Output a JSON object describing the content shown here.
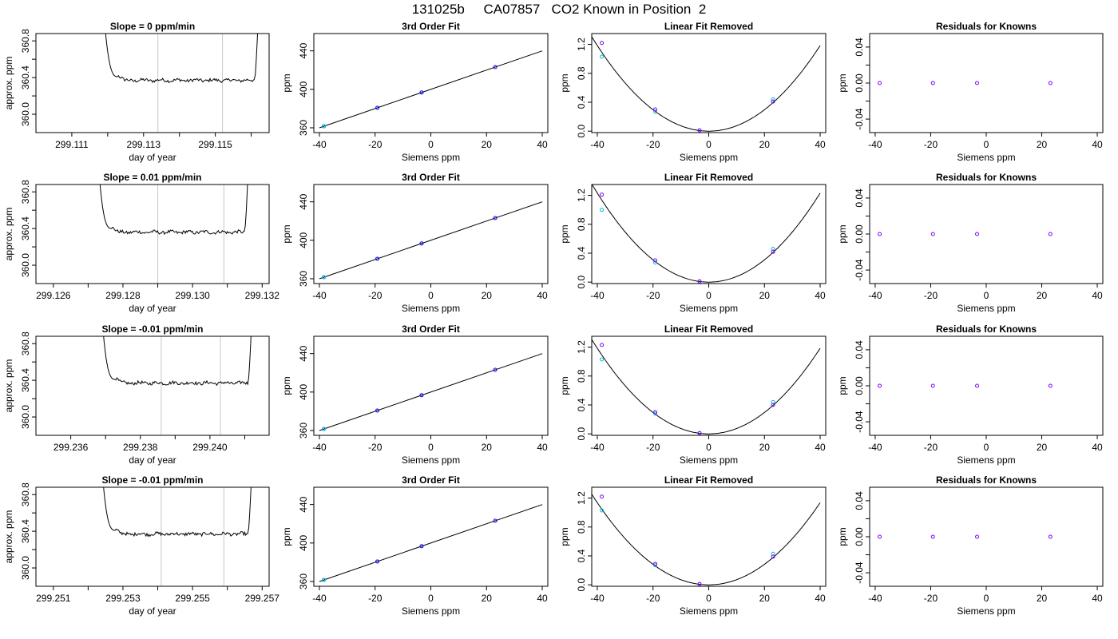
{
  "main_title": "131025b     CA07857   CO2 Known in Position  2",
  "chart_data": [
    {
      "type": "line",
      "row": 0,
      "panel": "trace",
      "title": "Slope =  0  ppm/min",
      "xlabel": "day of year",
      "ylabel": "approx. ppm",
      "xlim": [
        299.11,
        299.1165
      ],
      "ylim": [
        359.8,
        360.88
      ],
      "xticks": [
        299.111,
        299.112,
        299.113,
        299.114,
        299.115,
        299.116
      ],
      "xtick_labels": [
        "299.111",
        "",
        "299.113",
        "",
        "299.115",
        ""
      ],
      "yticks": [
        360.0,
        360.2,
        360.4,
        360.6,
        360.8
      ],
      "ytick_labels": [
        "360.0",
        "",
        "360.4",
        "",
        "360.8"
      ],
      "vlines": [
        299.1134,
        299.1152
      ],
      "trace": {
        "start": 299.1119,
        "end": 299.1162,
        "level": 360.37,
        "ends_high": true
      }
    },
    {
      "type": "line",
      "row": 0,
      "panel": "fit",
      "title": "3rd Order Fit",
      "xlabel": "Siemens ppm",
      "ylabel": "ppm",
      "xlim": [
        -42,
        42
      ],
      "ylim": [
        355,
        458
      ],
      "xticks": [
        -40,
        -20,
        0,
        20,
        40
      ],
      "yticks": [
        360,
        400,
        440
      ],
      "ytick_labels": [
        "360",
        "400",
        "440"
      ],
      "points": [
        {
          "x": -38.4,
          "y": 361.6
        },
        {
          "x": -19.2,
          "y": 380.8
        },
        {
          "x": -3.3,
          "y": 396.7
        },
        {
          "x": 23.1,
          "y": 423.1
        }
      ],
      "line": {
        "x0": -40,
        "x1": 40
      }
    },
    {
      "type": "line",
      "row": 0,
      "panel": "linear",
      "title": "Linear Fit Removed",
      "xlabel": "Siemens ppm",
      "ylabel": "ppm",
      "xlim": [
        -42,
        42
      ],
      "ylim": [
        -0.02,
        1.35
      ],
      "xticks": [
        -40,
        -20,
        0,
        20,
        40
      ],
      "yticks": [
        0.0,
        0.4,
        0.8,
        1.2
      ],
      "ytick_labels": [
        "0.0",
        "0.4",
        "0.8",
        "1.2"
      ],
      "curve_a": 0.00074,
      "x_end": 40,
      "y_end": 1.19,
      "points_purple": [
        {
          "x": -38.4,
          "y": 1.22
        },
        {
          "x": -19.2,
          "y": 0.3
        },
        {
          "x": -3.3,
          "y": 0.01
        },
        {
          "x": 23.1,
          "y": 0.41
        }
      ],
      "points_cyan": [
        {
          "x": -38.4,
          "y": 1.03
        },
        {
          "x": -19.2,
          "y": 0.27
        },
        {
          "x": -3.3,
          "y": 0.01
        },
        {
          "x": 23.1,
          "y": 0.44
        }
      ]
    },
    {
      "type": "scatter",
      "row": 0,
      "panel": "resid",
      "title": "Residuals for Knowns",
      "xlabel": "Siemens ppm",
      "ylabel": "ppm",
      "xlim": [
        -42,
        42
      ],
      "ylim": [
        -0.055,
        0.055
      ],
      "xticks": [
        -40,
        -20,
        0,
        20,
        40
      ],
      "yticks": [
        -0.04,
        -0.02,
        0.0,
        0.02,
        0.04
      ],
      "ytick_labels": [
        "-0.04",
        "",
        "0.00",
        "",
        "0.04"
      ],
      "points": [
        {
          "x": -38.4,
          "y": 0
        },
        {
          "x": -19.2,
          "y": 0
        },
        {
          "x": -3.3,
          "y": 0
        },
        {
          "x": 23.1,
          "y": 0
        }
      ]
    },
    {
      "type": "line",
      "row": 1,
      "panel": "trace",
      "title": "Slope =  0.01  ppm/min",
      "xlabel": "day of year",
      "ylabel": "approx. ppm",
      "xlim": [
        299.1255,
        299.1322
      ],
      "ylim": [
        359.8,
        360.88
      ],
      "xticks": [
        299.126,
        299.127,
        299.128,
        299.129,
        299.13,
        299.131,
        299.132
      ],
      "xtick_labels": [
        "299.126",
        "",
        "299.128",
        "",
        "299.130",
        "",
        "299.132"
      ],
      "yticks": [
        360.0,
        360.2,
        360.4,
        360.6,
        360.8
      ],
      "ytick_labels": [
        "360.0",
        "",
        "360.4",
        "",
        "360.8"
      ],
      "vlines": [
        299.129,
        299.1309
      ],
      "trace": {
        "start": 299.1273,
        "end": 299.1316,
        "level": 360.36,
        "ends_high": true
      }
    },
    {
      "type": "line",
      "row": 1,
      "panel": "fit",
      "title": "3rd Order Fit",
      "xlabel": "Siemens ppm",
      "ylabel": "ppm",
      "xlim": [
        -42,
        42
      ],
      "ylim": [
        355,
        458
      ],
      "xticks": [
        -40,
        -20,
        0,
        20,
        40
      ],
      "yticks": [
        360,
        400,
        440
      ],
      "ytick_labels": [
        "360",
        "400",
        "440"
      ],
      "points": [
        {
          "x": -38.4,
          "y": 361.6
        },
        {
          "x": -19.2,
          "y": 380.8
        },
        {
          "x": -3.3,
          "y": 396.7
        },
        {
          "x": 23.1,
          "y": 423.1
        }
      ],
      "line": {
        "x0": -40,
        "x1": 40
      }
    },
    {
      "type": "line",
      "row": 1,
      "panel": "linear",
      "title": "Linear Fit Removed",
      "xlabel": "Siemens ppm",
      "ylabel": "ppm",
      "xlim": [
        -42,
        42
      ],
      "ylim": [
        -0.02,
        1.35
      ],
      "xticks": [
        -40,
        -20,
        0,
        20,
        40
      ],
      "yticks": [
        0.0,
        0.4,
        0.8,
        1.2
      ],
      "ytick_labels": [
        "0.0",
        "0.4",
        "0.8",
        "1.2"
      ],
      "curve_a": 0.00077,
      "x_end": 40,
      "y_end": 1.25,
      "points_purple": [
        {
          "x": -38.4,
          "y": 1.21
        },
        {
          "x": -19.2,
          "y": 0.3
        },
        {
          "x": -3.3,
          "y": 0.01
        },
        {
          "x": 23.1,
          "y": 0.42
        }
      ],
      "points_cyan": [
        {
          "x": -38.4,
          "y": 1.0
        },
        {
          "x": -19.2,
          "y": 0.27
        },
        {
          "x": -3.3,
          "y": 0.01
        },
        {
          "x": 23.1,
          "y": 0.46
        }
      ]
    },
    {
      "type": "scatter",
      "row": 1,
      "panel": "resid",
      "title": "Residuals for Knowns",
      "xlabel": "Siemens ppm",
      "ylabel": "ppm",
      "xlim": [
        -42,
        42
      ],
      "ylim": [
        -0.055,
        0.055
      ],
      "xticks": [
        -40,
        -20,
        0,
        20,
        40
      ],
      "yticks": [
        -0.04,
        -0.02,
        0.0,
        0.02,
        0.04
      ],
      "ytick_labels": [
        "-0.04",
        "",
        "0.00",
        "",
        "0.04"
      ],
      "points": [
        {
          "x": -38.4,
          "y": 0
        },
        {
          "x": -19.2,
          "y": 0
        },
        {
          "x": -3.3,
          "y": 0
        },
        {
          "x": 23.1,
          "y": 0
        }
      ]
    },
    {
      "type": "line",
      "row": 2,
      "panel": "trace",
      "title": "Slope =  -0.01  ppm/min",
      "xlabel": "day of year",
      "ylabel": "approx. ppm",
      "xlim": [
        299.235,
        299.2417
      ],
      "ylim": [
        359.8,
        360.88
      ],
      "xticks": [
        299.236,
        299.237,
        299.238,
        299.239,
        299.24,
        299.241
      ],
      "xtick_labels": [
        "299.236",
        "",
        "299.238",
        "",
        "299.240",
        ""
      ],
      "yticks": [
        360.0,
        360.2,
        360.4,
        360.6,
        360.8
      ],
      "ytick_labels": [
        "360.0",
        "",
        "360.4",
        "",
        "360.8"
      ],
      "vlines": [
        299.2386,
        299.2403
      ],
      "trace": {
        "start": 299.2369,
        "end": 299.2412,
        "level": 360.37,
        "ends_high": true
      }
    },
    {
      "type": "line",
      "row": 2,
      "panel": "fit",
      "title": "3rd Order Fit",
      "xlabel": "Siemens ppm",
      "ylabel": "ppm",
      "xlim": [
        -42,
        42
      ],
      "ylim": [
        355,
        458
      ],
      "xticks": [
        -40,
        -20,
        0,
        20,
        40
      ],
      "yticks": [
        360,
        400,
        440
      ],
      "ytick_labels": [
        "360",
        "400",
        "440"
      ],
      "points": [
        {
          "x": -38.4,
          "y": 361.6
        },
        {
          "x": -19.2,
          "y": 380.8
        },
        {
          "x": -3.3,
          "y": 396.7
        },
        {
          "x": 23.1,
          "y": 423.1
        }
      ],
      "line": {
        "x0": -40,
        "x1": 40
      }
    },
    {
      "type": "line",
      "row": 2,
      "panel": "linear",
      "title": "Linear Fit Removed",
      "xlabel": "Siemens ppm",
      "ylabel": "ppm",
      "xlim": [
        -42,
        42
      ],
      "ylim": [
        -0.02,
        1.35
      ],
      "xticks": [
        -40,
        -20,
        0,
        20,
        40
      ],
      "yticks": [
        0.0,
        0.4,
        0.8,
        1.2
      ],
      "ytick_labels": [
        "0.0",
        "0.4",
        "0.8",
        "1.2"
      ],
      "curve_a": 0.00074,
      "x_end": 40,
      "y_end": 1.19,
      "points_purple": [
        {
          "x": -38.4,
          "y": 1.23
        },
        {
          "x": -19.2,
          "y": 0.3
        },
        {
          "x": -3.3,
          "y": 0.01
        },
        {
          "x": 23.1,
          "y": 0.4
        }
      ],
      "points_cyan": [
        {
          "x": -38.4,
          "y": 1.03
        },
        {
          "x": -19.2,
          "y": 0.28
        },
        {
          "x": -3.3,
          "y": 0.01
        },
        {
          "x": 23.1,
          "y": 0.44
        }
      ]
    },
    {
      "type": "scatter",
      "row": 2,
      "panel": "resid",
      "title": "Residuals for Knowns",
      "xlabel": "Siemens ppm",
      "ylabel": "ppm",
      "xlim": [
        -42,
        42
      ],
      "ylim": [
        -0.055,
        0.055
      ],
      "xticks": [
        -40,
        -20,
        0,
        20,
        40
      ],
      "yticks": [
        -0.04,
        -0.02,
        0.0,
        0.02,
        0.04
      ],
      "ytick_labels": [
        "-0.04",
        "",
        "0.00",
        "",
        "0.04"
      ],
      "points": [
        {
          "x": -38.4,
          "y": 0
        },
        {
          "x": -19.2,
          "y": 0
        },
        {
          "x": -3.3,
          "y": 0
        },
        {
          "x": 23.1,
          "y": 0
        }
      ]
    },
    {
      "type": "line",
      "row": 3,
      "panel": "trace",
      "title": "Slope =  -0.01  ppm/min",
      "xlabel": "day of year",
      "ylabel": "approx. ppm",
      "xlim": [
        299.2505,
        299.2572
      ],
      "ylim": [
        359.8,
        360.88
      ],
      "xticks": [
        299.251,
        299.252,
        299.253,
        299.254,
        299.255,
        299.256,
        299.257
      ],
      "xtick_labels": [
        "299.251",
        "",
        "299.253",
        "",
        "299.255",
        "",
        "299.257"
      ],
      "yticks": [
        360.0,
        360.2,
        360.4,
        360.6,
        360.8
      ],
      "ytick_labels": [
        "360.0",
        "",
        "360.4",
        "",
        "360.8"
      ],
      "vlines": [
        299.2541,
        299.2559
      ],
      "trace": {
        "start": 299.2524,
        "end": 299.2567,
        "level": 360.37,
        "ends_high": true
      }
    },
    {
      "type": "line",
      "row": 3,
      "panel": "fit",
      "title": "3rd Order Fit",
      "xlabel": "Siemens ppm",
      "ylabel": "ppm",
      "xlim": [
        -42,
        42
      ],
      "ylim": [
        355,
        458
      ],
      "xticks": [
        -40,
        -20,
        0,
        20,
        40
      ],
      "yticks": [
        360,
        400,
        440
      ],
      "ytick_labels": [
        "360",
        "400",
        "440"
      ],
      "points": [
        {
          "x": -38.4,
          "y": 361.6
        },
        {
          "x": -19.2,
          "y": 380.8
        },
        {
          "x": -3.3,
          "y": 396.7
        },
        {
          "x": 23.1,
          "y": 423.1
        }
      ],
      "line": {
        "x0": -40,
        "x1": 40
      }
    },
    {
      "type": "line",
      "row": 3,
      "panel": "linear",
      "title": "Linear Fit Removed",
      "xlabel": "Siemens ppm",
      "ylabel": "ppm",
      "xlim": [
        -42,
        42
      ],
      "ylim": [
        -0.02,
        1.35
      ],
      "xticks": [
        -40,
        -20,
        0,
        20,
        40
      ],
      "yticks": [
        0.0,
        0.4,
        0.8,
        1.2
      ],
      "ytick_labels": [
        "0.0",
        "0.4",
        "0.8",
        "1.2"
      ],
      "curve_a": 0.00071,
      "x_end": 40,
      "y_end": 1.11,
      "points_purple": [
        {
          "x": -38.4,
          "y": 1.22
        },
        {
          "x": -19.2,
          "y": 0.29
        },
        {
          "x": -3.3,
          "y": 0.01
        },
        {
          "x": 23.1,
          "y": 0.39
        }
      ],
      "points_cyan": [
        {
          "x": -38.4,
          "y": 1.03
        },
        {
          "x": -19.2,
          "y": 0.27
        },
        {
          "x": -3.3,
          "y": 0.01
        },
        {
          "x": 23.1,
          "y": 0.43
        }
      ]
    },
    {
      "type": "scatter",
      "row": 3,
      "panel": "resid",
      "title": "Residuals for Knowns",
      "xlabel": "Siemens ppm",
      "ylabel": "ppm",
      "xlim": [
        -42,
        42
      ],
      "ylim": [
        -0.055,
        0.055
      ],
      "xticks": [
        -40,
        -20,
        0,
        20,
        40
      ],
      "yticks": [
        -0.04,
        -0.02,
        0.0,
        0.02,
        0.04
      ],
      "ytick_labels": [
        "-0.04",
        "",
        "0.00",
        "",
        "0.04"
      ],
      "points": [
        {
          "x": -38.4,
          "y": 0
        },
        {
          "x": -19.2,
          "y": 0
        },
        {
          "x": -3.3,
          "y": 0
        },
        {
          "x": 23.1,
          "y": 0
        }
      ]
    }
  ],
  "colors": {
    "purple": "#8000ff",
    "cyan": "#00bcd4",
    "blue": "#0000ff",
    "vline": "#c8c8c8",
    "ink": "#000000"
  }
}
